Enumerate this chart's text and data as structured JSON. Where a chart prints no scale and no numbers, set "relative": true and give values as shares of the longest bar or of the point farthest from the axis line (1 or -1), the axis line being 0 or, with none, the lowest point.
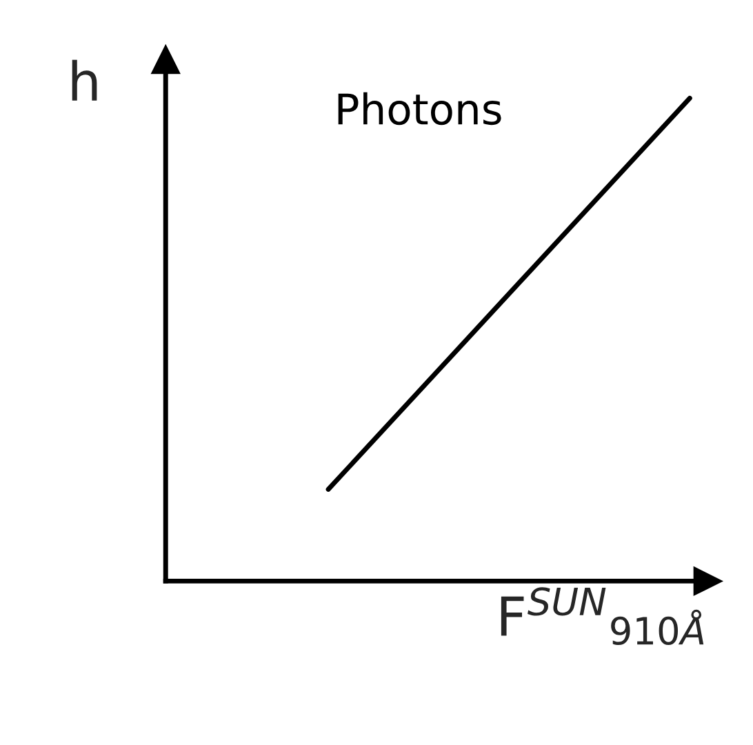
{
  "chart_data": {
    "type": "line",
    "relative": true,
    "xlabel": "F$^{SUN}$$_{910Å}$",
    "ylabel": "h",
    "categories": [
      null,
      null
    ],
    "series": [
      {
        "name": "Photons",
        "color": "#000000",
        "values": [
          0.19,
          1
        ]
      }
    ],
    "legend": false,
    "marker": "none",
    "line_style": "solid",
    "tick_labels": false
  }
}
